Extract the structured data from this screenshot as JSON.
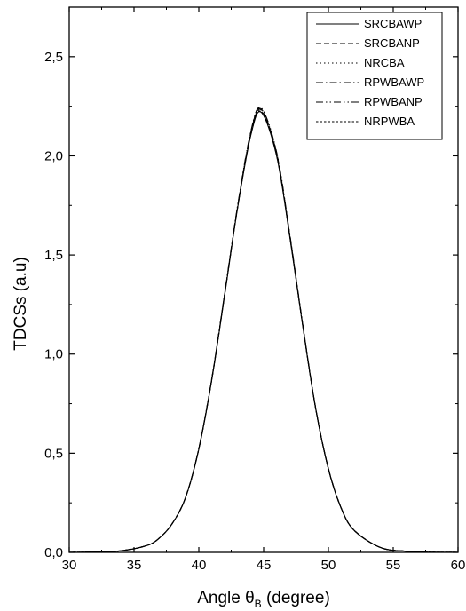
{
  "chart_data": {
    "type": "line",
    "xlabel": "Angle θ",
    "xlabel_sub": "B",
    "xlabel_suffix": " (degree)",
    "ylabel": "TDCSs (a.u)",
    "xlim": [
      30,
      60
    ],
    "ylim": [
      0,
      2.75
    ],
    "xticks": [
      30,
      35,
      40,
      45,
      50,
      55,
      60
    ],
    "xtick_labels": [
      "30",
      "35",
      "40",
      "45",
      "50",
      "55",
      "60"
    ],
    "yticks": [
      0,
      0.5,
      1.0,
      1.5,
      2.0,
      2.5
    ],
    "ytick_labels": [
      "0,0",
      "0,5",
      "1,0",
      "1,5",
      "2,0",
      "2,5"
    ],
    "grid": false,
    "legend_position": "top-right",
    "x": [
      30,
      32,
      34,
      36,
      37,
      38,
      39,
      40,
      41,
      42,
      43,
      44,
      44.8,
      46,
      47,
      48,
      49,
      50,
      51,
      52,
      54,
      56,
      58,
      60
    ],
    "series": [
      {
        "name": "SRCBAWP",
        "dash": "",
        "values": [
          0.0,
          0.002,
          0.008,
          0.035,
          0.075,
          0.15,
          0.28,
          0.52,
          0.87,
          1.3,
          1.74,
          2.1,
          2.22,
          2.0,
          1.6,
          1.15,
          0.73,
          0.42,
          0.22,
          0.11,
          0.025,
          0.006,
          0.001,
          0.0
        ]
      },
      {
        "name": "SRCBANP",
        "dash": "6,3",
        "values": [
          0.0,
          0.002,
          0.008,
          0.035,
          0.075,
          0.151,
          0.282,
          0.523,
          0.874,
          1.305,
          1.745,
          2.11,
          2.232,
          2.01,
          1.607,
          1.155,
          0.733,
          0.422,
          0.221,
          0.111,
          0.025,
          0.006,
          0.001,
          0.0
        ]
      },
      {
        "name": "NRCBA",
        "dash": "1.5,3",
        "values": [
          0.0,
          0.002,
          0.008,
          0.035,
          0.075,
          0.151,
          0.281,
          0.522,
          0.872,
          1.303,
          1.743,
          2.105,
          2.225,
          2.005,
          1.604,
          1.152,
          0.732,
          0.421,
          0.221,
          0.11,
          0.025,
          0.006,
          0.001,
          0.0
        ]
      },
      {
        "name": "RPWBAWP",
        "dash": "8,3,1.5,3",
        "values": [
          0.0,
          0.002,
          0.008,
          0.035,
          0.075,
          0.151,
          0.282,
          0.524,
          0.876,
          1.307,
          1.748,
          2.115,
          2.237,
          2.015,
          1.61,
          1.157,
          0.734,
          0.423,
          0.222,
          0.111,
          0.025,
          0.006,
          0.001,
          0.0
        ]
      },
      {
        "name": "RPWBANP",
        "dash": "8,3,1.5,3,1.5,3",
        "values": [
          0.0,
          0.002,
          0.008,
          0.035,
          0.075,
          0.151,
          0.283,
          0.525,
          0.878,
          1.31,
          1.752,
          2.12,
          2.242,
          2.02,
          1.614,
          1.16,
          0.735,
          0.424,
          0.222,
          0.111,
          0.025,
          0.006,
          0.001,
          0.0
        ]
      },
      {
        "name": "NRPWBA",
        "dash": "2.5,2",
        "values": [
          0.0,
          0.002,
          0.008,
          0.035,
          0.075,
          0.15,
          0.281,
          0.521,
          0.871,
          1.302,
          1.742,
          2.103,
          2.223,
          2.003,
          1.603,
          1.151,
          0.731,
          0.421,
          0.22,
          0.11,
          0.025,
          0.006,
          0.001,
          0.0
        ]
      }
    ]
  }
}
